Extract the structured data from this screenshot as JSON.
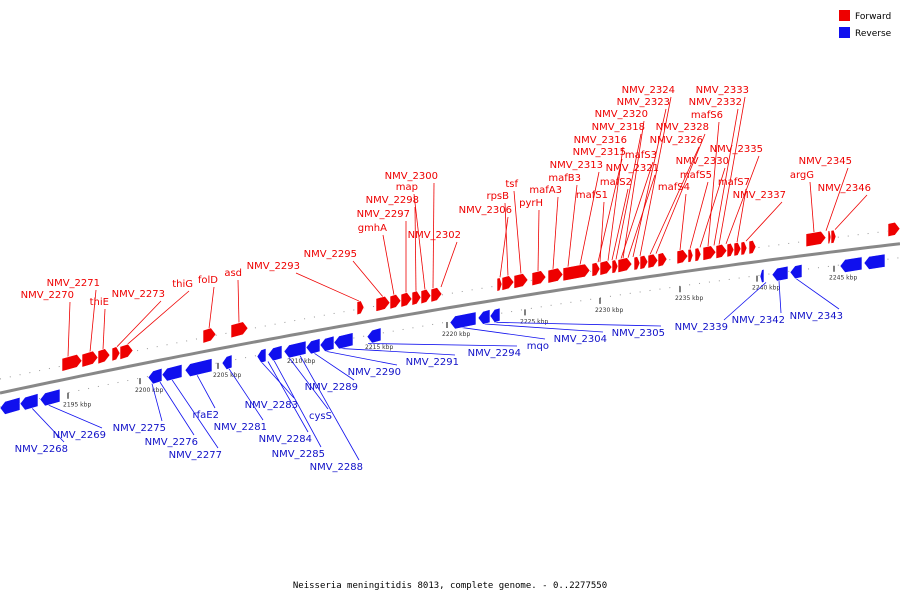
{
  "legend": {
    "forward": {
      "label": "Forward",
      "color": "#ee0000"
    },
    "reverse": {
      "label": "Reverse",
      "color": "#1010ee"
    }
  },
  "caption": "Neisseria meningitidis 8013, complete genome. - 0..2277550",
  "ticks": [
    "2195 kbp",
    "2200 kbp",
    "2205 kbp",
    "2210 kbp",
    "2215 kbp",
    "2220 kbp",
    "2225 kbp",
    "2230 kbp",
    "2235 kbp",
    "2240 kbp",
    "2245 kbp"
  ],
  "forward_labels": [
    "NMV_2270",
    "NMV_2271",
    "thiE",
    "NMV_2273",
    "thiG",
    "folD",
    "asd",
    "NMV_2293",
    "NMV_2295",
    "gmhA",
    "NMV_2297",
    "NMV_2298",
    "map",
    "NMV_2300",
    "NMV_2302",
    "NMV_2306",
    "rpsB",
    "tsf",
    "pyrH",
    "mafA3",
    "mafB3",
    "NMV_2313",
    "NMV_2315",
    "NMV_2316",
    "NMV_2318",
    "NMV_2320",
    "NMV_2323",
    "NMV_2324",
    "mafS1",
    "mafS2",
    "mafS3",
    "NMV_2321",
    "NMV_2326",
    "NMV_2328",
    "mafS4",
    "mafS5",
    "NMV_2330",
    "mafS6",
    "NMV_2332",
    "NMV_2333",
    "NMV_2335",
    "mafS7",
    "NMV_2337",
    "argG",
    "NMV_2345",
    "NMV_2346"
  ],
  "reverse_labels": [
    "NMV_2268",
    "NMV_2269",
    "NMV_2275",
    "NMV_2276",
    "NMV_2277",
    "rfaE2",
    "NMV_2281",
    "NMV_2283",
    "NMV_2284",
    "NMV_2285",
    "cysS",
    "NMV_2288",
    "NMV_2289",
    "NMV_2290",
    "NMV_2291",
    "NMV_2294",
    "mqo",
    "NMV_2304",
    "NMV_2305",
    "NMV_2339",
    "NMV_2342",
    "NMV_2343"
  ]
}
